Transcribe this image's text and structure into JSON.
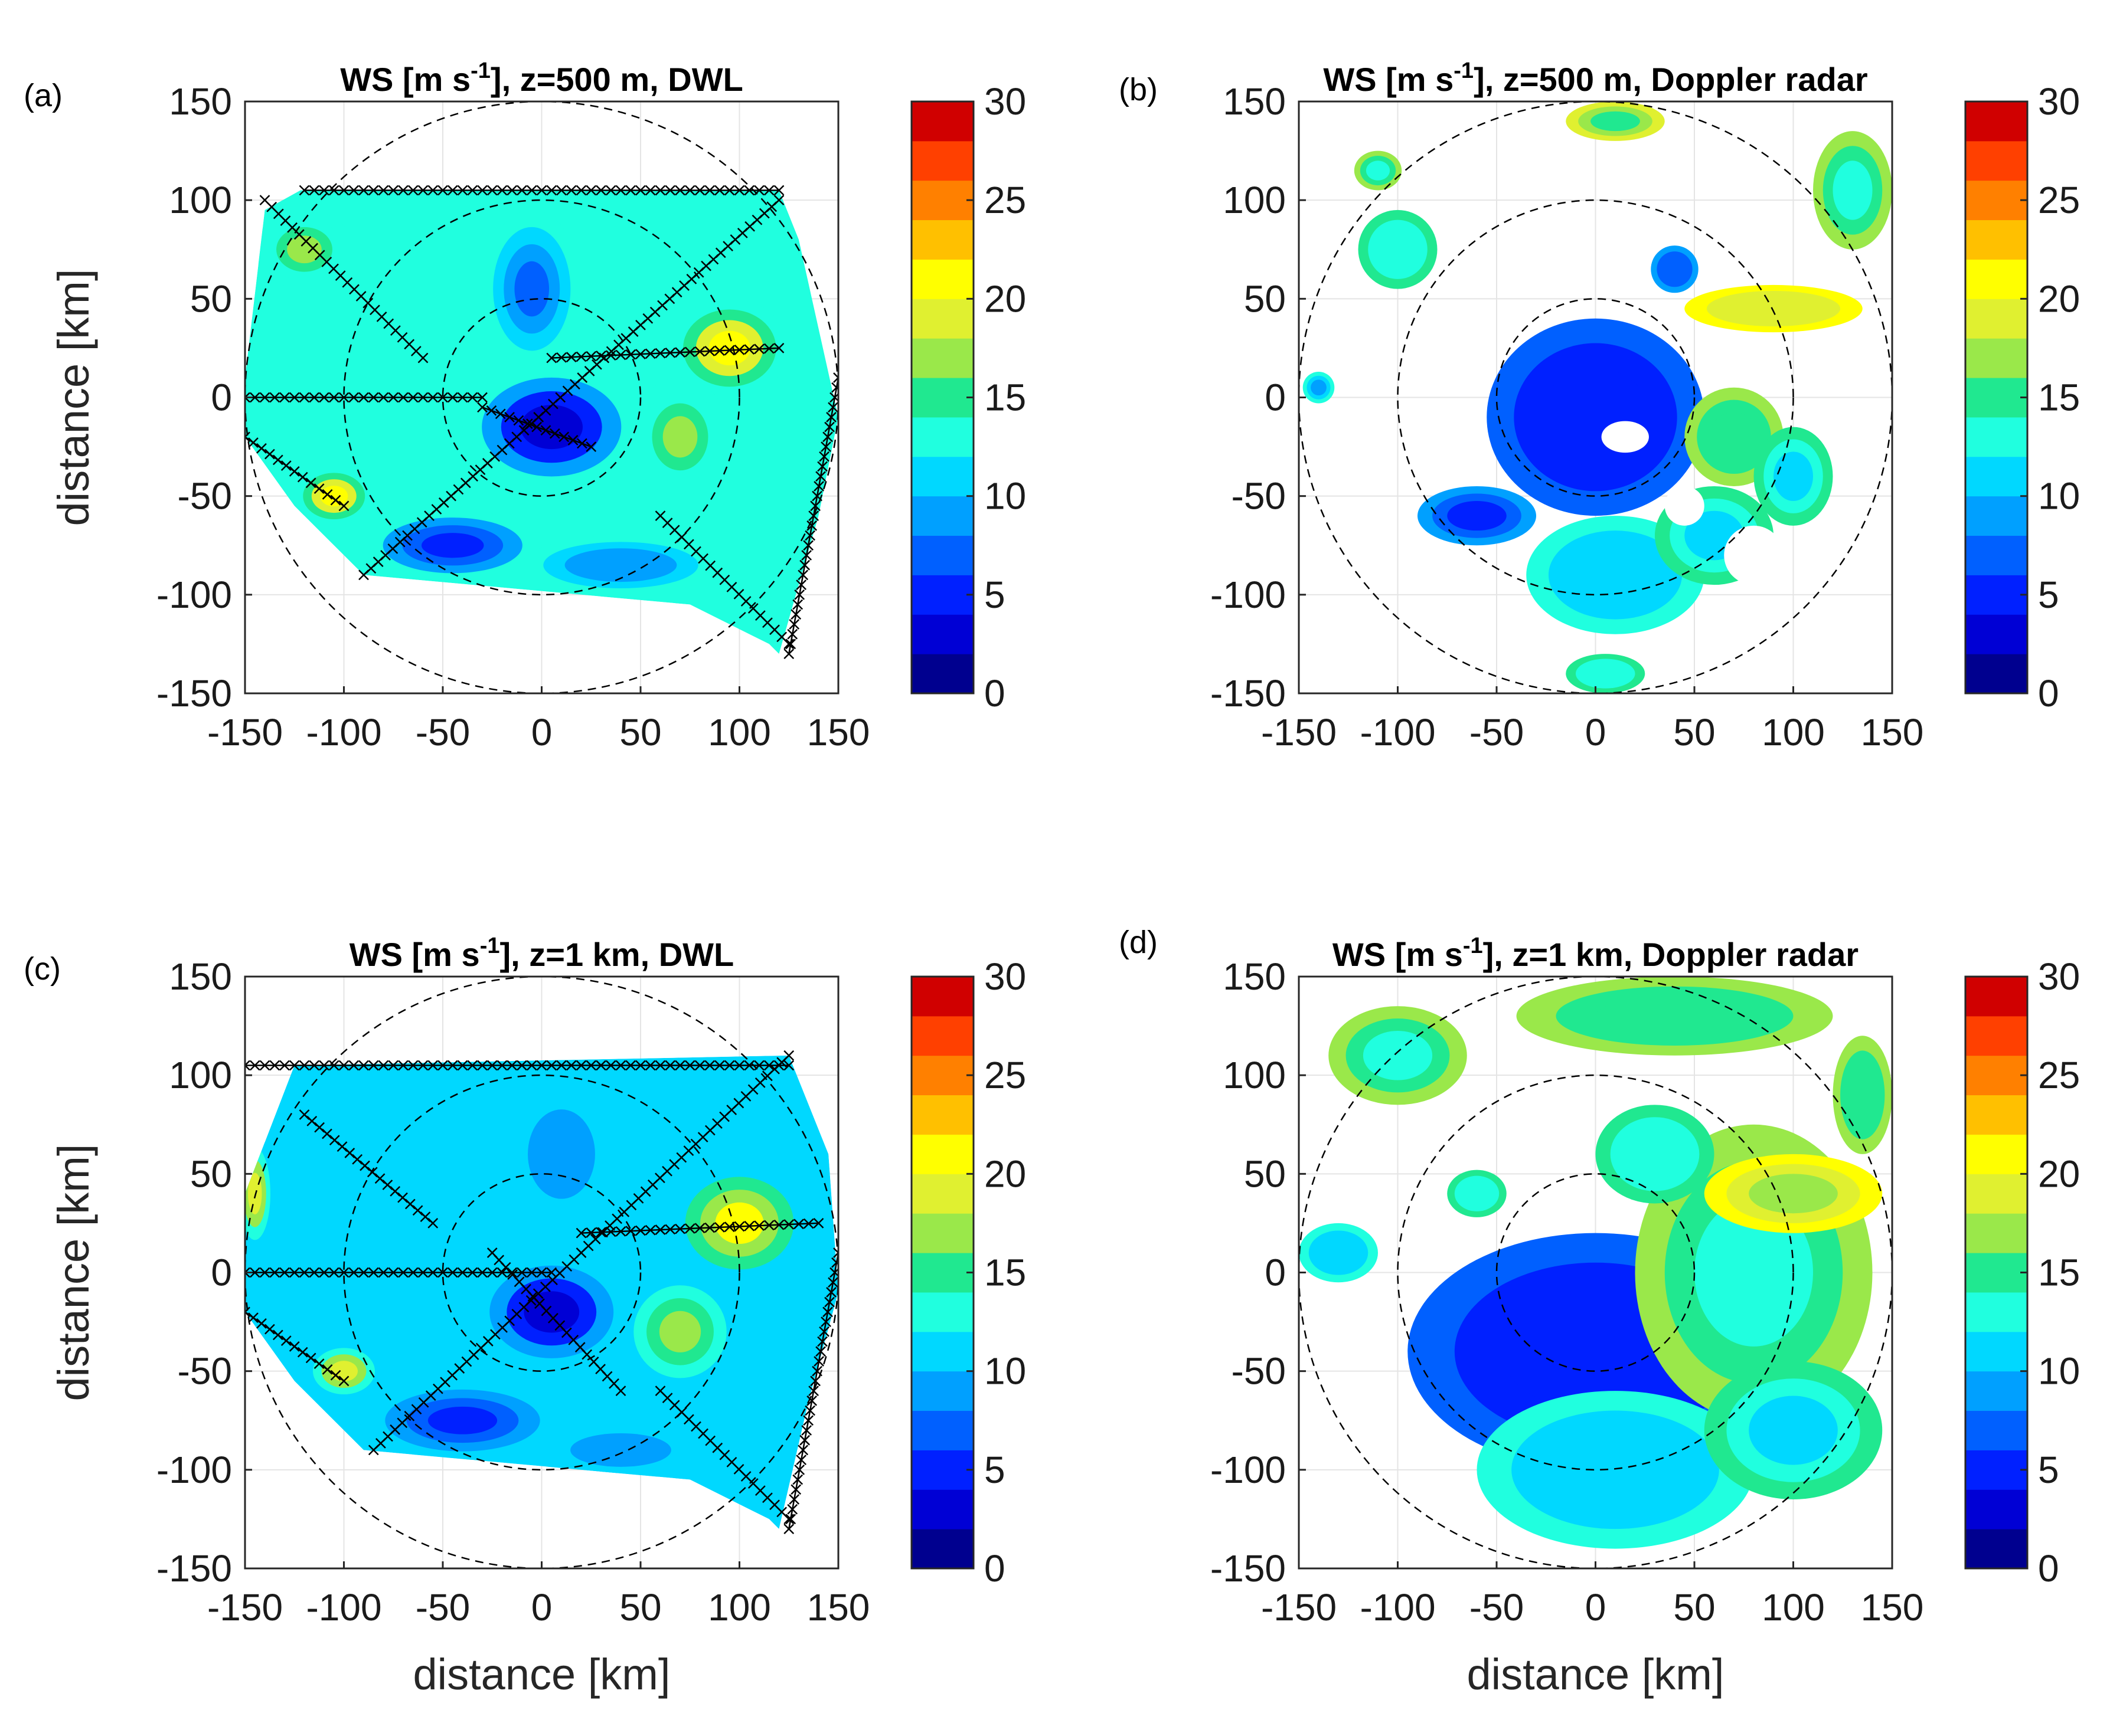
{
  "chart_data": [
    {
      "type": "heatmap",
      "panel_label": "(a)",
      "title_prefix": "WS [m s",
      "title_sup": "-1",
      "title_suffix": "], z=500 m,  DWL",
      "xlabel": "",
      "ylabel": "distance [km]",
      "xlim": [
        -150,
        150
      ],
      "ylim": [
        -150,
        150
      ],
      "xticks": [
        "-150",
        "-100",
        "-50",
        "0",
        "50",
        "100",
        "150"
      ],
      "yticks": [
        "150",
        "100",
        "50",
        "0",
        "-50",
        "-100",
        "-150"
      ],
      "range_rings_km": [
        50,
        100,
        150
      ],
      "colorbar": {
        "min": 0,
        "max": 30,
        "levels": 15,
        "ticks": [
          "30",
          "25",
          "20",
          "15",
          "10",
          "5",
          "0"
        ]
      },
      "polygon_km": [
        [
          -150,
          -20
        ],
        [
          -150,
          10
        ],
        [
          -140,
          95
        ],
        [
          -122,
          105
        ],
        [
          120,
          105
        ],
        [
          130,
          80
        ],
        [
          150,
          -10
        ],
        [
          140,
          -60
        ],
        [
          120,
          -130
        ],
        [
          115,
          -125
        ],
        [
          75,
          -105
        ],
        [
          -90,
          -90
        ],
        [
          -125,
          -55
        ]
      ],
      "background_ws": 12,
      "features": [
        {
          "x": 5,
          "y": -15,
          "rx": 45,
          "ry": 32,
          "ws": 2
        },
        {
          "x": -45,
          "y": -75,
          "rx": 45,
          "ry": 18,
          "ws": 4
        },
        {
          "x": -5,
          "y": 55,
          "rx": 25,
          "ry": 40,
          "ws": 7
        },
        {
          "x": 95,
          "y": 25,
          "rx": 30,
          "ry": 25,
          "ws": 21
        },
        {
          "x": -105,
          "y": -50,
          "rx": 20,
          "ry": 15,
          "ws": 21
        },
        {
          "x": 70,
          "y": -20,
          "rx": 25,
          "ry": 30,
          "ws": 16
        },
        {
          "x": -120,
          "y": 75,
          "rx": 25,
          "ry": 20,
          "ws": 16
        },
        {
          "x": 40,
          "y": -85,
          "rx": 50,
          "ry": 15,
          "ws": 8
        }
      ],
      "scan_lines": [
        {
          "x1": -140,
          "y1": 100,
          "x2": -60,
          "y2": 20
        },
        {
          "x1": -30,
          "y1": -5,
          "x2": 25,
          "y2": -25
        },
        {
          "x1": -150,
          "y1": -20,
          "x2": -100,
          "y2": -55
        },
        {
          "x1": -90,
          "y1": -90,
          "x2": 120,
          "y2": 100
        },
        {
          "x1": 60,
          "y1": -60,
          "x2": 125,
          "y2": -125
        },
        {
          "x1": 125,
          "y1": -130,
          "x2": 150,
          "y2": 10
        },
        {
          "x1": -150,
          "y1": 0,
          "x2": -30,
          "y2": 0
        },
        {
          "x1": -120,
          "y1": 105,
          "x2": 120,
          "y2": 105
        },
        {
          "x1": 5,
          "y1": 20,
          "x2": 120,
          "y2": 25
        }
      ]
    },
    {
      "type": "heatmap",
      "panel_label": "(b)",
      "title_prefix": "WS [m s",
      "title_sup": "-1",
      "title_suffix": "], z=500 m, Doppler radar",
      "xlabel": "",
      "ylabel": "",
      "xlim": [
        -150,
        150
      ],
      "ylim": [
        -150,
        150
      ],
      "xticks": [
        "-150",
        "-100",
        "-50",
        "0",
        "50",
        "100",
        "150"
      ],
      "yticks": [
        "150",
        "100",
        "50",
        "0",
        "-50",
        "-100",
        "-150"
      ],
      "range_rings_km": [
        50,
        100,
        150
      ],
      "colorbar": {
        "min": 0,
        "max": 30,
        "levels": 15,
        "ticks": [
          "30",
          "25",
          "20",
          "15",
          "10",
          "5",
          "0"
        ]
      },
      "blobs": [
        {
          "x": 0,
          "y": -10,
          "rx": 55,
          "ry": 50,
          "ws": 4
        },
        {
          "x": -60,
          "y": -60,
          "rx": 30,
          "ry": 15,
          "ws": 5
        },
        {
          "x": 10,
          "y": -90,
          "rx": 45,
          "ry": 30,
          "ws": 10
        },
        {
          "x": 60,
          "y": -70,
          "rx": 30,
          "ry": 25,
          "ws": 11
        },
        {
          "x": 90,
          "y": 45,
          "rx": 45,
          "ry": 12,
          "ws": 18
        },
        {
          "x": 70,
          "y": -20,
          "rx": 25,
          "ry": 25,
          "ws": 14
        },
        {
          "x": 100,
          "y": -40,
          "rx": 20,
          "ry": 25,
          "ws": 11
        },
        {
          "x": -100,
          "y": 75,
          "rx": 20,
          "ry": 20,
          "ws": 12
        },
        {
          "x": -110,
          "y": 115,
          "rx": 12,
          "ry": 10,
          "ws": 13
        },
        {
          "x": 130,
          "y": 105,
          "rx": 20,
          "ry": 30,
          "ws": 13
        },
        {
          "x": 10,
          "y": 140,
          "rx": 25,
          "ry": 10,
          "ws": 15
        },
        {
          "x": -140,
          "y": 5,
          "rx": 8,
          "ry": 8,
          "ws": 9
        },
        {
          "x": 40,
          "y": 65,
          "rx": 12,
          "ry": 12,
          "ws": 6
        },
        {
          "x": 5,
          "y": -140,
          "rx": 20,
          "ry": 10,
          "ws": 12
        }
      ],
      "holes": [
        {
          "x": 15,
          "y": -20,
          "rx": 12,
          "ry": 8
        },
        {
          "x": 45,
          "y": -55,
          "rx": 10,
          "ry": 10
        },
        {
          "x": 80,
          "y": -80,
          "rx": 15,
          "ry": 15
        }
      ]
    },
    {
      "type": "heatmap",
      "panel_label": "(c)",
      "title_prefix": "WS [m s",
      "title_sup": "-1",
      "title_suffix": "], z=1 km,  DWL",
      "xlabel": "distance [km]",
      "ylabel": "distance [km]",
      "xlim": [
        -150,
        150
      ],
      "ylim": [
        -150,
        150
      ],
      "xticks": [
        "-150",
        "-100",
        "-50",
        "0",
        "50",
        "100",
        "150"
      ],
      "yticks": [
        "150",
        "100",
        "50",
        "0",
        "-50",
        "-100",
        "-150"
      ],
      "range_rings_km": [
        50,
        100,
        150
      ],
      "colorbar": {
        "min": 0,
        "max": 30,
        "levels": 15,
        "ticks": [
          "30",
          "25",
          "20",
          "15",
          "10",
          "5",
          "0"
        ]
      },
      "polygon_km": [
        [
          -150,
          -20
        ],
        [
          -150,
          40
        ],
        [
          -125,
          105
        ],
        [
          125,
          110
        ],
        [
          145,
          60
        ],
        [
          150,
          -10
        ],
        [
          135,
          -65
        ],
        [
          120,
          -130
        ],
        [
          115,
          -125
        ],
        [
          75,
          -105
        ],
        [
          -90,
          -90
        ],
        [
          -125,
          -55
        ]
      ],
      "background_ws": 11,
      "features": [
        {
          "x": 5,
          "y": -20,
          "rx": 40,
          "ry": 30,
          "ws": 2
        },
        {
          "x": -40,
          "y": -75,
          "rx": 50,
          "ry": 20,
          "ws": 4
        },
        {
          "x": 10,
          "y": 60,
          "rx": 30,
          "ry": 40,
          "ws": 9
        },
        {
          "x": 100,
          "y": 25,
          "rx": 35,
          "ry": 30,
          "ws": 21
        },
        {
          "x": -100,
          "y": -50,
          "rx": 20,
          "ry": 15,
          "ws": 19
        },
        {
          "x": 70,
          "y": -30,
          "rx": 30,
          "ry": 30,
          "ws": 16
        },
        {
          "x": 40,
          "y": -90,
          "rx": 45,
          "ry": 15,
          "ws": 8
        },
        {
          "x": -145,
          "y": 40,
          "rx": 10,
          "ry": 30,
          "ws": 19
        }
      ],
      "scan_lines": [
        {
          "x1": -120,
          "y1": 80,
          "x2": -55,
          "y2": 25
        },
        {
          "x1": -25,
          "y1": 10,
          "x2": 40,
          "y2": -60
        },
        {
          "x1": -150,
          "y1": -20,
          "x2": -100,
          "y2": -55
        },
        {
          "x1": -85,
          "y1": -90,
          "x2": 125,
          "y2": 110
        },
        {
          "x1": 60,
          "y1": -60,
          "x2": 125,
          "y2": -125
        },
        {
          "x1": 125,
          "y1": -130,
          "x2": 150,
          "y2": 10
        },
        {
          "x1": -150,
          "y1": 0,
          "x2": 5,
          "y2": 0
        },
        {
          "x1": -150,
          "y1": 105,
          "x2": 125,
          "y2": 105
        },
        {
          "x1": 20,
          "y1": 20,
          "x2": 140,
          "y2": 25
        }
      ]
    },
    {
      "type": "heatmap",
      "panel_label": "(d)",
      "title_prefix": "WS [m s",
      "title_sup": "-1",
      "title_suffix": "], z=1 km, Doppler radar",
      "xlabel": "distance [km]",
      "ylabel": "",
      "xlim": [
        -150,
        150
      ],
      "ylim": [
        -150,
        150
      ],
      "xticks": [
        "-150",
        "-100",
        "-50",
        "0",
        "50",
        "100",
        "150"
      ],
      "yticks": [
        "150",
        "100",
        "50",
        "0",
        "-50",
        "-100",
        "-150"
      ],
      "range_rings_km": [
        50,
        100,
        150
      ],
      "colorbar": {
        "min": 0,
        "max": 30,
        "levels": 15,
        "ticks": [
          "30",
          "25",
          "20",
          "15",
          "10",
          "5",
          "0"
        ]
      },
      "blobs": [
        {
          "x": 0,
          "y": -40,
          "rx": 95,
          "ry": 60,
          "ws": 4
        },
        {
          "x": 10,
          "y": -100,
          "rx": 70,
          "ry": 40,
          "ws": 10
        },
        {
          "x": 80,
          "y": 0,
          "rx": 60,
          "ry": 75,
          "ws": 13
        },
        {
          "x": 100,
          "y": -80,
          "rx": 45,
          "ry": 35,
          "ws": 11
        },
        {
          "x": 100,
          "y": 40,
          "rx": 45,
          "ry": 20,
          "ws": 17
        },
        {
          "x": 40,
          "y": 130,
          "rx": 80,
          "ry": 20,
          "ws": 14
        },
        {
          "x": -100,
          "y": 110,
          "rx": 35,
          "ry": 25,
          "ws": 13
        },
        {
          "x": -130,
          "y": 10,
          "rx": 20,
          "ry": 15,
          "ws": 10
        },
        {
          "x": 30,
          "y": 60,
          "rx": 30,
          "ry": 25,
          "ws": 12
        },
        {
          "x": -60,
          "y": 40,
          "rx": 15,
          "ry": 12,
          "ws": 12
        },
        {
          "x": 135,
          "y": 90,
          "rx": 15,
          "ry": 30,
          "ws": 14
        }
      ],
      "holes": []
    }
  ]
}
